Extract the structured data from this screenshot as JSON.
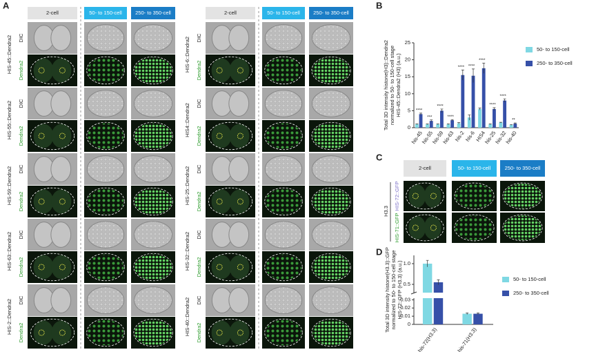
{
  "figure": {
    "panel_letters": [
      "A",
      "B",
      "C",
      "D"
    ],
    "stage_headers": [
      "2-cell",
      "50- to 150-cell",
      "250- to 350-cell"
    ],
    "channel_labels": [
      "DIC",
      "Dendra2"
    ],
    "panel_a": {
      "left_rows": [
        "HIS-45::Dendra2",
        "HIS-55::Dendra2",
        "HIS-59::Dendra2",
        "HIS-63::Dendra2",
        "HIS-2::Dendra2"
      ],
      "right_rows": [
        "HIS-6::Dendra2",
        "HIS4::Dendra2",
        "HIS-25::Dendra2",
        "HIS-32::Dendra2",
        "HIS-40::Dendra2"
      ]
    },
    "panel_c": {
      "group": "H3.3",
      "rows": [
        "HIS-72::GFP",
        "HIS-71::GFP"
      ]
    }
  },
  "chart_data": [
    {
      "type": "bar",
      "ylabel_lines": [
        "Total 3D intensity histone(H3)::Dendra2",
        "normalized to 50- to 150-cell stage",
        "HIS-45::Dendra2 (H3) (a.u.)"
      ],
      "categories": [
        "his-45",
        "his-55",
        "his-59",
        "his-63",
        "his-2",
        "his-6",
        "HIS4",
        "his-25",
        "his-32",
        "his-40"
      ],
      "series": [
        {
          "name": "50- to 150-cell",
          "color": "#7fd8e3",
          "values": [
            1,
            1,
            1,
            1,
            1.3,
            3,
            5.5,
            1,
            1.5,
            0.8
          ],
          "errors": [
            0.1,
            0.1,
            0.1,
            0.1,
            0.2,
            0.8,
            0.3,
            0.1,
            0.1,
            0.1
          ]
        },
        {
          "name": "250- to 350-cell",
          "color": "#3650a8",
          "values": [
            4,
            2,
            5,
            2.2,
            15.5,
            15.3,
            17.5,
            5.5,
            8,
            1.2
          ],
          "errors": [
            0.3,
            0.3,
            0.5,
            0.2,
            1.5,
            2,
            1.5,
            0.4,
            0.5,
            0.2
          ]
        }
      ],
      "significance": [
        "****",
        "***",
        "****",
        "****",
        "****",
        "****",
        "****",
        "****",
        "****",
        "**"
      ],
      "ylim": [
        0,
        25
      ],
      "yticks": [
        0,
        5,
        10,
        15,
        20,
        25
      ],
      "legend": "upper right"
    },
    {
      "type": "broken-bar",
      "ylabel_lines": [
        "Total 3D intensity histone(H3.3)::GFP",
        "normalized to 50- to 150-cell stage",
        "HIS-72::GFP (H3.3) (a.u.)"
      ],
      "categories": [
        "his-72(H3.3)",
        "his-71(H3.3)"
      ],
      "series": [
        {
          "name": "50- to 150-cell",
          "color": "#7fd8e3",
          "values": [
            1,
            0.013
          ],
          "errors": [
            0.08,
            0.001
          ]
        },
        {
          "name": "250- to 350-cell",
          "color": "#3650a8",
          "values": [
            0.55,
            0.013
          ],
          "errors": [
            0.06,
            0.001
          ]
        }
      ],
      "segments": [
        {
          "ylim": [
            0,
            0.032
          ],
          "yticks": [
            0,
            0.01,
            0.02,
            0.03
          ]
        },
        {
          "ylim": [
            0.3,
            1.2
          ],
          "yticks": [
            0.5,
            {
              "value": 1,
              "label": "1.0"
            }
          ]
        }
      ],
      "legend": "upper right"
    }
  ]
}
